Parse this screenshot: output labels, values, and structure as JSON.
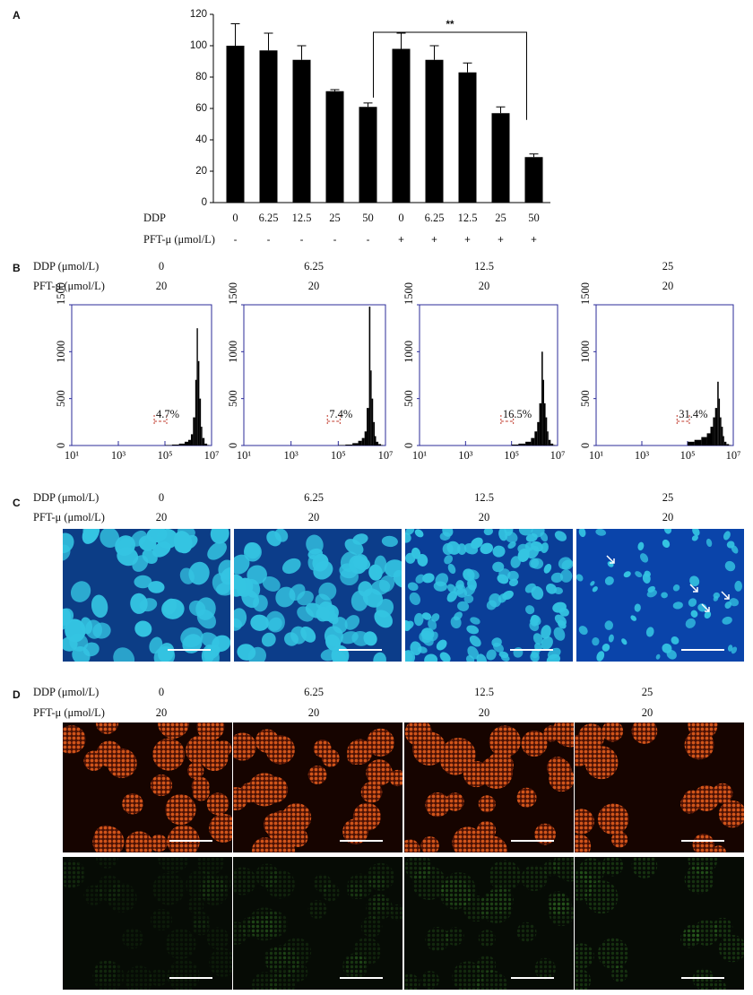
{
  "panel_labels": [
    "A",
    "B",
    "C",
    "D"
  ],
  "chart_data": [
    {
      "type": "bar",
      "categories": [
        "0",
        "6.25",
        "12.5",
        "25",
        "50",
        "0",
        "6.25",
        "12.5",
        "25",
        "50"
      ],
      "row_labels": [
        "DDP",
        "PFT-μ (μmol/L)"
      ],
      "pft": [
        "-",
        "-",
        "-",
        "-",
        "-",
        "+",
        "+",
        "+",
        "+",
        "+"
      ],
      "values": [
        100,
        97,
        91,
        71,
        61,
        98,
        91,
        83,
        57,
        29
      ],
      "errors": [
        14,
        11,
        9,
        1,
        2.5,
        10,
        9,
        6,
        4,
        2
      ],
      "color": "#000000",
      "ylim": [
        0,
        120
      ],
      "yticks": [
        0,
        20,
        40,
        60,
        80,
        100,
        120
      ],
      "annotation": "**"
    },
    {
      "type": "histogram",
      "bins": [
        100000,
        200000,
        400000,
        700000,
        1000000,
        1300000,
        1600000,
        2000000,
        2300000,
        2600000,
        3000000,
        3500000,
        4000000,
        5000000,
        6500000,
        8000000
      ],
      "values": [
        5,
        10,
        20,
        40,
        60,
        120,
        300,
        700,
        1250,
        900,
        500,
        200,
        80,
        20,
        5
      ],
      "color": "#000000",
      "axis_color": "#2b2b9a",
      "annotation_color": "#c0392b",
      "xscale": "log",
      "xlim": [
        10,
        10000000
      ],
      "xticks": [
        {
          "value": 10,
          "label": "10¹"
        },
        {
          "value": 1000,
          "label": "10³"
        },
        {
          "value": 100000,
          "label": "10⁵"
        },
        {
          "value": 10000000,
          "label": "10⁷"
        }
      ],
      "ylim": [
        0,
        1500
      ],
      "yticks": [
        0,
        500,
        1000,
        1500
      ],
      "annotation": "4.7%"
    },
    {
      "type": "histogram",
      "bins": [
        100000,
        200000,
        400000,
        700000,
        1000000,
        1300000,
        1600000,
        2000000,
        2300000,
        2600000,
        3000000,
        3500000,
        4000000,
        5000000,
        6500000,
        8000000
      ],
      "values": [
        5,
        10,
        25,
        50,
        80,
        150,
        400,
        1480,
        800,
        500,
        250,
        100,
        40,
        15,
        5
      ],
      "color": "#000000",
      "axis_color": "#2b2b9a",
      "annotation_color": "#c0392b",
      "xscale": "log",
      "xlim": [
        10,
        10000000
      ],
      "xticks": [
        {
          "value": 10,
          "label": "10¹"
        },
        {
          "value": 1000,
          "label": "10³"
        },
        {
          "value": 100000,
          "label": "10⁵"
        },
        {
          "value": 10000000,
          "label": "10⁷"
        }
      ],
      "ylim": [
        0,
        1500
      ],
      "yticks": [
        0,
        500,
        1000,
        1500
      ],
      "annotation": "7.4%"
    },
    {
      "type": "histogram",
      "bins": [
        100000,
        200000,
        400000,
        700000,
        1000000,
        1300000,
        1600000,
        2000000,
        2300000,
        2600000,
        3000000,
        3500000,
        4000000,
        5000000,
        6500000,
        8000000
      ],
      "values": [
        10,
        20,
        40,
        80,
        150,
        250,
        450,
        1000,
        700,
        450,
        300,
        150,
        60,
        20,
        5
      ],
      "color": "#000000",
      "axis_color": "#2b2b9a",
      "annotation_color": "#c0392b",
      "xscale": "log",
      "xlim": [
        10,
        10000000
      ],
      "xticks": [
        {
          "value": 10,
          "label": "10¹"
        },
        {
          "value": 1000,
          "label": "10³"
        },
        {
          "value": 100000,
          "label": "10⁵"
        },
        {
          "value": 10000000,
          "label": "10⁷"
        }
      ],
      "ylim": [
        0,
        1500
      ],
      "yticks": [
        0,
        500,
        1000,
        1500
      ],
      "annotation": "16.5%"
    },
    {
      "type": "histogram",
      "bins": [
        100000,
        200000,
        400000,
        700000,
        1000000,
        1300000,
        1600000,
        2000000,
        2300000,
        2600000,
        3000000,
        3500000,
        4000000,
        5000000,
        6500000,
        8000000
      ],
      "values": [
        40,
        60,
        90,
        130,
        200,
        300,
        400,
        680,
        500,
        300,
        200,
        100,
        40,
        15,
        5
      ],
      "color": "#000000",
      "axis_color": "#2b2b9a",
      "annotation_color": "#c0392b",
      "xscale": "log",
      "xlim": [
        10,
        10000000
      ],
      "xticks": [
        {
          "value": 10,
          "label": "10¹"
        },
        {
          "value": 1000,
          "label": "10³"
        },
        {
          "value": 100000,
          "label": "10⁵"
        },
        {
          "value": 10000000,
          "label": "10⁷"
        }
      ],
      "ylim": [
        0,
        1500
      ],
      "yticks": [
        0,
        500,
        1000,
        1500
      ],
      "annotation": "31.4%"
    }
  ],
  "panel_b": {
    "row_labels": [
      "DDP (μmol/L)",
      "PFT-μ (μmol/L)"
    ],
    "ddp": [
      "0",
      "6.25",
      "12.5",
      "25"
    ],
    "pft": [
      "20",
      "20",
      "20",
      "20"
    ]
  },
  "panel_c": {
    "row_labels": [
      "DDP (μmol/L)",
      "PFT-μ (μmol/L)"
    ],
    "ddp": [
      "0",
      "6.25",
      "12.5",
      "25"
    ],
    "pft": [
      "20",
      "20",
      "20",
      "20"
    ]
  },
  "panel_d": {
    "row_labels": [
      "DDP (μmol/L)",
      "PFT-μ (μmol/L)"
    ],
    "ddp": [
      "0",
      "6.25",
      "12.5",
      "25"
    ],
    "pft": [
      "20",
      "20",
      "20",
      "20"
    ]
  }
}
